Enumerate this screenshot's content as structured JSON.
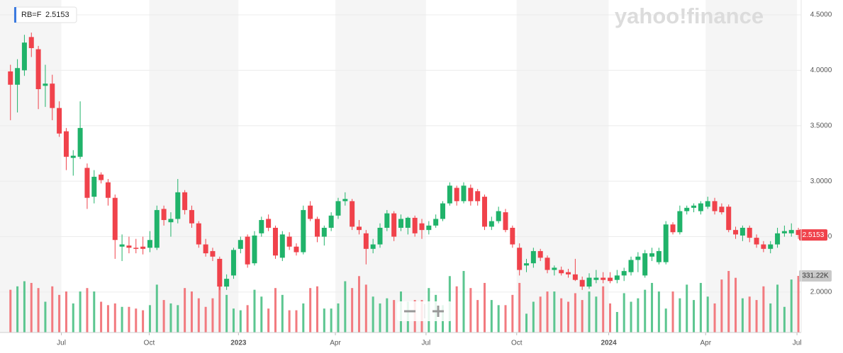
{
  "chart_data": {
    "type": "candlestick",
    "symbol": "RB=F",
    "price_label": "2.5153",
    "volume_label": "331.22K",
    "watermark": "yahoo!finance",
    "up_color": "#20b36a",
    "down_color": "#f0424b",
    "up_volume_color": "#5cc690",
    "down_volume_color": "#f27a7f",
    "ylim": [
      1.636,
      4.602
    ],
    "yticks": [
      {
        "value": 2.0,
        "label": "2.0000"
      },
      {
        "value": 2.5,
        "label": "2.5000"
      },
      {
        "value": 3.0,
        "label": "3.0000"
      },
      {
        "value": 3.5,
        "label": "3.5000"
      },
      {
        "value": 4.0,
        "label": "4.0000"
      },
      {
        "value": 4.5,
        "label": "4.5000"
      }
    ],
    "xlim": [
      -1.5,
      113.4
    ],
    "xticks": [
      {
        "value": 7.3,
        "label": "Jul"
      },
      {
        "value": 19.9,
        "label": "Oct"
      },
      {
        "value": 32.7,
        "label": "2023"
      },
      {
        "value": 46.6,
        "label": "Apr"
      },
      {
        "value": 59.6,
        "label": "Jul"
      },
      {
        "value": 72.6,
        "label": "Oct"
      },
      {
        "value": 85.8,
        "label": "2024"
      },
      {
        "value": 99.7,
        "label": "Apr"
      },
      {
        "value": 112.8,
        "label": "Jul"
      }
    ],
    "volume_lim": [
      0,
      1925
    ],
    "ohlc": [
      [
        3.99,
        4.05,
        3.55,
        3.87
      ],
      [
        3.87,
        4.1,
        3.62,
        4.02
      ],
      [
        4.0,
        4.32,
        3.95,
        4.25
      ],
      [
        4.3,
        4.34,
        4.12,
        4.2
      ],
      [
        4.19,
        4.22,
        3.65,
        3.83
      ],
      [
        3.86,
        4.05,
        3.67,
        3.88
      ],
      [
        3.88,
        3.96,
        3.55,
        3.66
      ],
      [
        3.66,
        3.72,
        3.4,
        3.43
      ],
      [
        3.45,
        3.48,
        3.1,
        3.22
      ],
      [
        3.21,
        3.28,
        3.05,
        3.23
      ],
      [
        3.22,
        3.72,
        3.2,
        3.48
      ],
      [
        3.12,
        3.16,
        2.75,
        2.85
      ],
      [
        2.86,
        3.1,
        2.8,
        3.04
      ],
      [
        3.06,
        3.08,
        2.98,
        3.01
      ],
      [
        2.99,
        3.02,
        2.78,
        2.85
      ],
      [
        2.85,
        2.88,
        2.3,
        2.47
      ],
      [
        2.41,
        2.52,
        2.28,
        2.43
      ],
      [
        2.42,
        2.5,
        2.35,
        2.4
      ],
      [
        2.4,
        2.48,
        2.35,
        2.39
      ],
      [
        2.41,
        2.5,
        2.34,
        2.39
      ],
      [
        2.4,
        2.55,
        2.36,
        2.47
      ],
      [
        2.4,
        2.78,
        2.38,
        2.74
      ],
      [
        2.75,
        2.78,
        2.6,
        2.65
      ],
      [
        2.63,
        2.72,
        2.5,
        2.66
      ],
      [
        2.66,
        3.02,
        2.62,
        2.9
      ],
      [
        2.9,
        2.92,
        2.7,
        2.74
      ],
      [
        2.74,
        2.78,
        2.58,
        2.62
      ],
      [
        2.62,
        2.64,
        2.4,
        2.43
      ],
      [
        2.43,
        2.48,
        2.32,
        2.35
      ],
      [
        2.37,
        2.4,
        2.28,
        2.32
      ],
      [
        2.3,
        2.32,
        2.02,
        2.05
      ],
      [
        2.05,
        2.16,
        2.02,
        2.12
      ],
      [
        2.15,
        2.4,
        2.12,
        2.38
      ],
      [
        2.39,
        2.5,
        2.35,
        2.47
      ],
      [
        2.5,
        2.52,
        2.22,
        2.25
      ],
      [
        2.26,
        2.55,
        2.24,
        2.51
      ],
      [
        2.53,
        2.68,
        2.5,
        2.65
      ],
      [
        2.66,
        2.7,
        2.55,
        2.58
      ],
      [
        2.58,
        2.6,
        2.3,
        2.33
      ],
      [
        2.31,
        2.55,
        2.28,
        2.52
      ],
      [
        2.5,
        2.54,
        2.38,
        2.41
      ],
      [
        2.41,
        2.44,
        2.33,
        2.36
      ],
      [
        2.36,
        2.78,
        2.34,
        2.74
      ],
      [
        2.78,
        2.82,
        2.64,
        2.66
      ],
      [
        2.66,
        2.68,
        2.45,
        2.5
      ],
      [
        2.5,
        2.6,
        2.42,
        2.58
      ],
      [
        2.58,
        2.72,
        2.55,
        2.69
      ],
      [
        2.69,
        2.85,
        2.66,
        2.82
      ],
      [
        2.82,
        2.9,
        2.78,
        2.84
      ],
      [
        2.82,
        2.84,
        2.56,
        2.59
      ],
      [
        2.59,
        2.65,
        2.52,
        2.56
      ],
      [
        2.53,
        2.56,
        2.25,
        2.39
      ],
      [
        2.39,
        2.48,
        2.35,
        2.43
      ],
      [
        2.43,
        2.62,
        2.4,
        2.58
      ],
      [
        2.58,
        2.74,
        2.55,
        2.71
      ],
      [
        2.71,
        2.73,
        2.46,
        2.5
      ],
      [
        2.58,
        2.7,
        2.55,
        2.66
      ],
      [
        2.58,
        2.68,
        2.52,
        2.67
      ],
      [
        2.67,
        2.69,
        2.5,
        2.53
      ],
      [
        2.62,
        2.66,
        2.48,
        2.56
      ],
      [
        2.56,
        2.64,
        2.52,
        2.6
      ],
      [
        2.6,
        2.7,
        2.58,
        2.66
      ],
      [
        2.66,
        2.82,
        2.64,
        2.8
      ],
      [
        2.8,
        2.99,
        2.78,
        2.96
      ],
      [
        2.94,
        2.96,
        2.78,
        2.82
      ],
      [
        2.82,
        2.99,
        2.8,
        2.96
      ],
      [
        2.94,
        2.97,
        2.78,
        2.82
      ],
      [
        2.91,
        2.93,
        2.78,
        2.82
      ],
      [
        2.86,
        2.88,
        2.56,
        2.59
      ],
      [
        2.59,
        2.68,
        2.56,
        2.64
      ],
      [
        2.64,
        2.77,
        2.62,
        2.73
      ],
      [
        2.72,
        2.75,
        2.54,
        2.56
      ],
      [
        2.58,
        2.6,
        2.4,
        2.43
      ],
      [
        2.4,
        2.44,
        2.15,
        2.2
      ],
      [
        2.24,
        2.3,
        2.18,
        2.26
      ],
      [
        2.26,
        2.4,
        2.22,
        2.37
      ],
      [
        2.37,
        2.39,
        2.28,
        2.31
      ],
      [
        2.31,
        2.33,
        2.17,
        2.2
      ],
      [
        2.2,
        2.24,
        2.15,
        2.22
      ],
      [
        2.2,
        2.23,
        2.15,
        2.17
      ],
      [
        2.18,
        2.21,
        2.13,
        2.16
      ],
      [
        2.16,
        2.3,
        2.1,
        2.11
      ],
      [
        2.11,
        2.14,
        2.02,
        2.05
      ],
      [
        2.05,
        2.17,
        2.03,
        2.13
      ],
      [
        2.11,
        2.2,
        2.08,
        2.13
      ],
      [
        2.13,
        2.18,
        2.08,
        2.11
      ],
      [
        2.13,
        2.18,
        2.08,
        2.1
      ],
      [
        2.11,
        2.2,
        2.08,
        2.15
      ],
      [
        2.15,
        2.22,
        2.1,
        2.19
      ],
      [
        2.18,
        2.32,
        2.15,
        2.29
      ],
      [
        2.29,
        2.36,
        2.18,
        2.32
      ],
      [
        2.15,
        2.38,
        2.13,
        2.35
      ],
      [
        2.32,
        2.4,
        2.28,
        2.35
      ],
      [
        2.27,
        2.4,
        2.25,
        2.37
      ],
      [
        2.27,
        2.64,
        2.25,
        2.61
      ],
      [
        2.61,
        2.63,
        2.52,
        2.54
      ],
      [
        2.54,
        2.78,
        2.52,
        2.73
      ],
      [
        2.73,
        2.78,
        2.7,
        2.76
      ],
      [
        2.76,
        2.8,
        2.72,
        2.78
      ],
      [
        2.73,
        2.82,
        2.7,
        2.8
      ],
      [
        2.77,
        2.86,
        2.75,
        2.82
      ],
      [
        2.82,
        2.85,
        2.7,
        2.73
      ],
      [
        2.77,
        2.8,
        2.7,
        2.72
      ],
      [
        2.77,
        2.79,
        2.54,
        2.56
      ],
      [
        2.56,
        2.59,
        2.48,
        2.52
      ],
      [
        2.51,
        2.6,
        2.46,
        2.58
      ],
      [
        2.58,
        2.6,
        2.45,
        2.49
      ],
      [
        2.49,
        2.52,
        2.4,
        2.43
      ],
      [
        2.43,
        2.46,
        2.36,
        2.39
      ],
      [
        2.39,
        2.46,
        2.35,
        2.43
      ],
      [
        2.43,
        2.58,
        2.4,
        2.53
      ],
      [
        2.53,
        2.6,
        2.5,
        2.55
      ],
      [
        2.53,
        2.62,
        2.5,
        2.56
      ],
      [
        2.56,
        2.58,
        2.48,
        2.5153
      ]
    ],
    "volume": [
      250,
      270,
      300,
      290,
      260,
      180,
      270,
      220,
      240,
      170,
      240,
      260,
      240,
      180,
      160,
      170,
      150,
      150,
      140,
      130,
      160,
      280,
      190,
      170,
      160,
      260,
      240,
      200,
      150,
      200,
      280,
      220,
      140,
      130,
      160,
      250,
      210,
      140,
      260,
      220,
      130,
      130,
      170,
      260,
      270,
      140,
      140,
      170,
      300,
      260,
      330,
      280,
      210,
      170,
      200,
      190,
      240,
      180,
      190,
      190,
      260,
      220,
      160,
      330,
      270,
      360,
      260,
      190,
      290,
      190,
      160,
      160,
      220,
      290,
      110,
      180,
      210,
      240,
      240,
      200,
      180,
      230,
      190,
      240,
      210,
      270,
      170,
      120,
      230,
      180,
      200,
      250,
      290,
      240,
      140,
      240,
      200,
      280,
      190,
      290,
      210,
      170,
      310,
      360,
      320,
      200,
      210,
      190,
      270,
      170,
      280,
      150,
      310,
      331.22
    ]
  }
}
